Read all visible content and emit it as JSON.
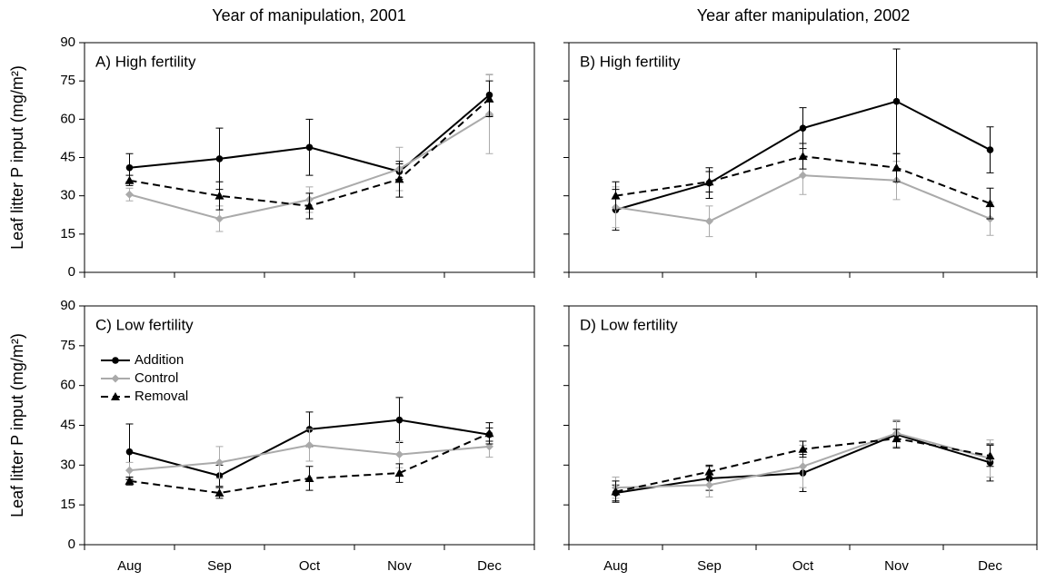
{
  "column_titles": [
    "Year of manipulation, 2001",
    "Year after manipulation, 2002"
  ],
  "chart_data": [
    {
      "type": "line",
      "title": "A) High fertility",
      "ylabel": "Leaf litter P input (mg/m²)",
      "ylim": [
        0,
        90
      ],
      "yticks": [
        0,
        15,
        30,
        45,
        60,
        75,
        90
      ],
      "series": [
        {
          "color": "#000000",
          "marker": "circle",
          "dash": false,
          "values": [
            41,
            44.5,
            49,
            39.5,
            69.5
          ],
          "errors": [
            5.5,
            12,
            11,
            3,
            8
          ]
        },
        {
          "color": "#aaaaaa",
          "marker": "diamond",
          "dash": false,
          "values": [
            30.5,
            21,
            28.5,
            40.5,
            62
          ],
          "errors": [
            2.5,
            5,
            5,
            8.5,
            15.5
          ]
        },
        {
          "color": "#000000",
          "marker": "triangle",
          "dash": true,
          "values": [
            36,
            30,
            26,
            36.5,
            68
          ],
          "errors": [
            2,
            5.5,
            5,
            7,
            7
          ]
        }
      ]
    },
    {
      "type": "line",
      "title": "B) High fertility",
      "yticklabels": false,
      "ylim": [
        0,
        90
      ],
      "yticks": [
        0,
        15,
        30,
        45,
        60,
        75,
        90
      ],
      "series": [
        {
          "color": "#000000",
          "marker": "circle",
          "dash": false,
          "values": [
            24.5,
            35,
            56.5,
            67,
            48
          ],
          "errors": [
            8,
            6,
            8,
            20.5,
            9
          ]
        },
        {
          "color": "#aaaaaa",
          "marker": "diamond",
          "dash": false,
          "values": [
            25.5,
            20,
            38,
            36,
            21
          ],
          "errors": [
            8,
            6,
            7.5,
            7.5,
            6.5
          ]
        },
        {
          "color": "#000000",
          "marker": "triangle",
          "dash": true,
          "values": [
            30,
            35.5,
            45.5,
            41,
            27
          ],
          "errors": [
            5.5,
            4,
            5,
            5.5,
            6
          ]
        }
      ]
    },
    {
      "type": "line",
      "title": "C) Low fertility",
      "ylabel": "Leaf litter P input (mg/m²)",
      "ylim": [
        0,
        90
      ],
      "yticks": [
        0,
        15,
        30,
        45,
        60,
        75,
        90
      ],
      "legend": "upper left",
      "categories": [
        "Aug",
        "Sep",
        "Oct",
        "Nov",
        "Dec"
      ],
      "series": [
        {
          "name": "Addition",
          "color": "#000000",
          "marker": "circle",
          "dash": false,
          "values": [
            35,
            26,
            43.5,
            47,
            41.5
          ],
          "errors": [
            10.5,
            4,
            6.5,
            8.5,
            2.5
          ]
        },
        {
          "name": "Control",
          "color": "#aaaaaa",
          "marker": "diamond",
          "dash": false,
          "values": [
            28,
            31,
            37.5,
            34,
            37
          ],
          "errors": [
            3,
            6,
            6,
            5,
            4
          ]
        },
        {
          "name": "Removal",
          "color": "#000000",
          "marker": "triangle",
          "dash": true,
          "values": [
            24,
            19.5,
            25,
            27,
            42
          ],
          "errors": [
            1.5,
            2,
            4.5,
            3.5,
            4
          ]
        }
      ]
    },
    {
      "type": "line",
      "title": "D) Low fertility",
      "yticklabels": false,
      "ylim": [
        0,
        90
      ],
      "yticks": [
        0,
        15,
        30,
        45,
        60,
        75,
        90
      ],
      "categories": [
        "Aug",
        "Sep",
        "Oct",
        "Nov",
        "Dec"
      ],
      "series": [
        {
          "color": "#000000",
          "marker": "circle",
          "dash": false,
          "values": [
            19.5,
            25,
            27,
            41.5,
            31
          ],
          "errors": [
            3,
            4.5,
            7,
            5,
            7
          ]
        },
        {
          "color": "#aaaaaa",
          "marker": "diamond",
          "dash": false,
          "values": [
            21.5,
            22.5,
            29.5,
            42,
            32.5
          ],
          "errors": [
            4,
            4.5,
            8,
            5,
            7
          ]
        },
        {
          "color": "#000000",
          "marker": "triangle",
          "dash": true,
          "values": [
            20,
            27.5,
            36,
            40,
            33.5
          ],
          "errors": [
            4,
            2.5,
            3,
            3.5,
            4
          ]
        }
      ]
    }
  ]
}
